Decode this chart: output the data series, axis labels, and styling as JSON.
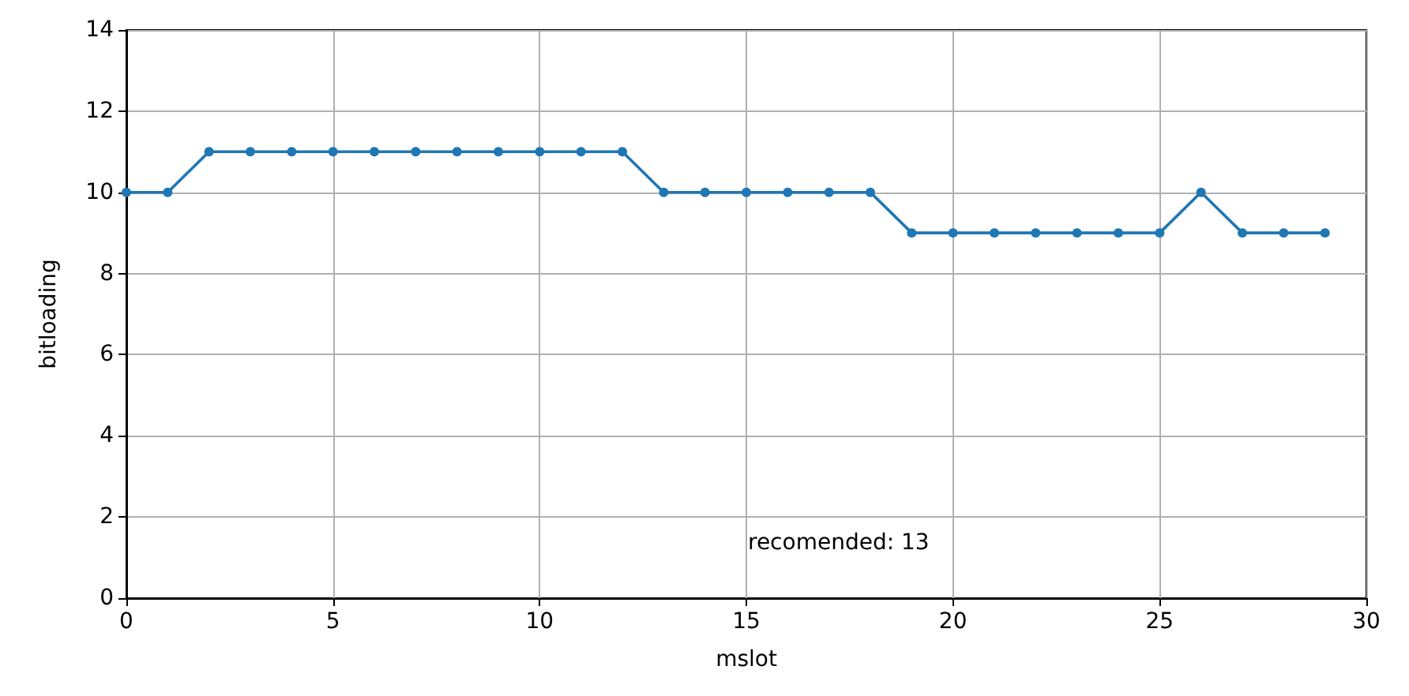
{
  "chart_data": {
    "type": "line",
    "xlabel": "mslot",
    "ylabel": "bitloading",
    "x": [
      0,
      1,
      2,
      3,
      4,
      5,
      6,
      7,
      8,
      9,
      10,
      11,
      12,
      13,
      14,
      15,
      16,
      17,
      18,
      19,
      20,
      21,
      22,
      23,
      24,
      25,
      26,
      27,
      28,
      29
    ],
    "series": [
      {
        "color": "#1f77b4",
        "values": [
          10,
          10,
          11,
          11,
          11,
          11,
          11,
          11,
          11,
          11,
          11,
          11,
          11,
          10,
          10,
          10,
          10,
          10,
          10,
          9,
          9,
          9,
          9,
          9,
          9,
          9,
          10,
          9,
          9,
          9
        ]
      }
    ],
    "xlim": [
      0,
      30
    ],
    "xticks": [
      0,
      5,
      10,
      15,
      20,
      25,
      30
    ],
    "ylim": [
      0,
      14
    ],
    "yticks": [
      0,
      2,
      4,
      6,
      8,
      10,
      12,
      14
    ],
    "grid": true,
    "marker": "circle",
    "line_style": "solid",
    "annotations": [
      "recomended: 13"
    ]
  }
}
